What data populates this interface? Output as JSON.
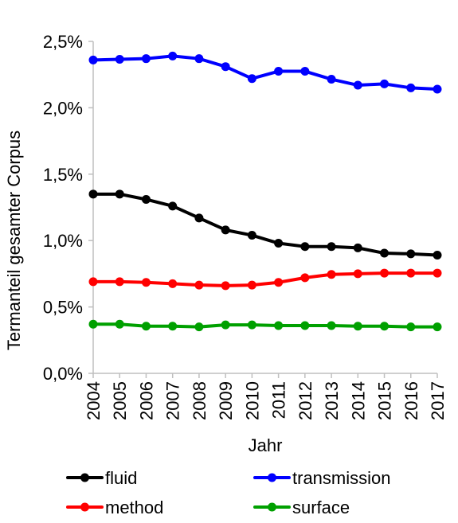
{
  "chart_data": {
    "type": "line",
    "title": "",
    "xlabel": "Jahr",
    "ylabel": "Termanteil gesamter Corpus",
    "ylim": [
      0,
      2.5
    ],
    "y_ticks": [
      "0,0%",
      "0,5%",
      "1,0%",
      "1,5%",
      "2,0%",
      "2,5%"
    ],
    "y_tick_values": [
      0,
      0.5,
      1.0,
      1.5,
      2.0,
      2.5
    ],
    "grid": false,
    "legend_position": "bottom",
    "categories": [
      "2004",
      "2005",
      "2006",
      "2007",
      "2008",
      "2009",
      "2010",
      "2011",
      "2012",
      "2013",
      "2014",
      "2015",
      "2016",
      "2017"
    ],
    "series": [
      {
        "name": "fluid",
        "color": "#000000",
        "values": [
          1.35,
          1.35,
          1.31,
          1.26,
          1.17,
          1.08,
          1.04,
          0.98,
          0.955,
          0.955,
          0.945,
          0.905,
          0.9,
          0.89
        ]
      },
      {
        "name": "transmission",
        "color": "#0000ff",
        "values": [
          2.36,
          2.365,
          2.37,
          2.39,
          2.37,
          2.31,
          2.22,
          2.275,
          2.275,
          2.215,
          2.17,
          2.18,
          2.15,
          2.14
        ]
      },
      {
        "name": "method",
        "color": "#ff0000",
        "values": [
          0.69,
          0.69,
          0.685,
          0.675,
          0.665,
          0.66,
          0.665,
          0.685,
          0.72,
          0.745,
          0.75,
          0.755,
          0.755,
          0.755
        ]
      },
      {
        "name": "surface",
        "color": "#00a000",
        "values": [
          0.37,
          0.37,
          0.355,
          0.355,
          0.35,
          0.365,
          0.365,
          0.36,
          0.36,
          0.36,
          0.355,
          0.355,
          0.35,
          0.35
        ]
      }
    ]
  }
}
